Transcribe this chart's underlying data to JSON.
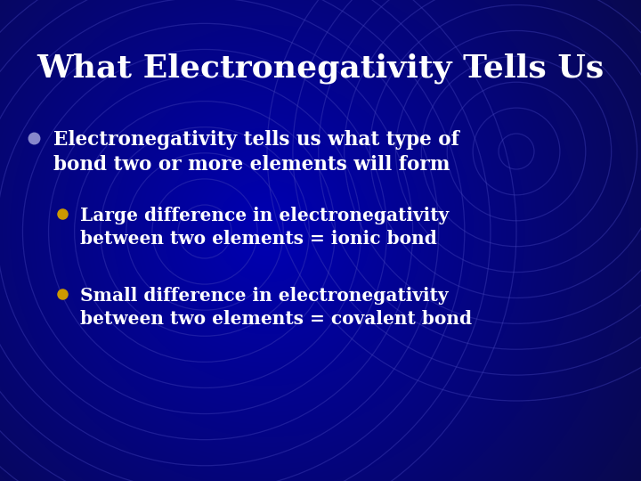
{
  "title": "What Electronegativity Tells Us",
  "bg_dark": "#000030",
  "bg_mid": "#000080",
  "bg_center": "#0000CC",
  "title_color": "#FFFFFF",
  "title_fontsize": 26,
  "bullet1_dot_color": "#8888CC",
  "bullet2_dot_color": "#CC9900",
  "bullet3_dot_color": "#CC9900",
  "text_color": "#FFFFFF",
  "bullet1_line1": "Electronegativity tells us what type of",
  "bullet1_line2": "bond two or more elements will form",
  "bullet2_line1": "Large difference in electronegativity",
  "bullet2_line2": "between two elements = ionic bond",
  "bullet3_line1": "Small difference in electronegativity",
  "bullet3_line2": "between two elements = covalent bond",
  "circle_color": "#4444BB",
  "circle_alpha": 0.4,
  "fig_width": 7.2,
  "fig_height": 5.4,
  "dpi": 100
}
